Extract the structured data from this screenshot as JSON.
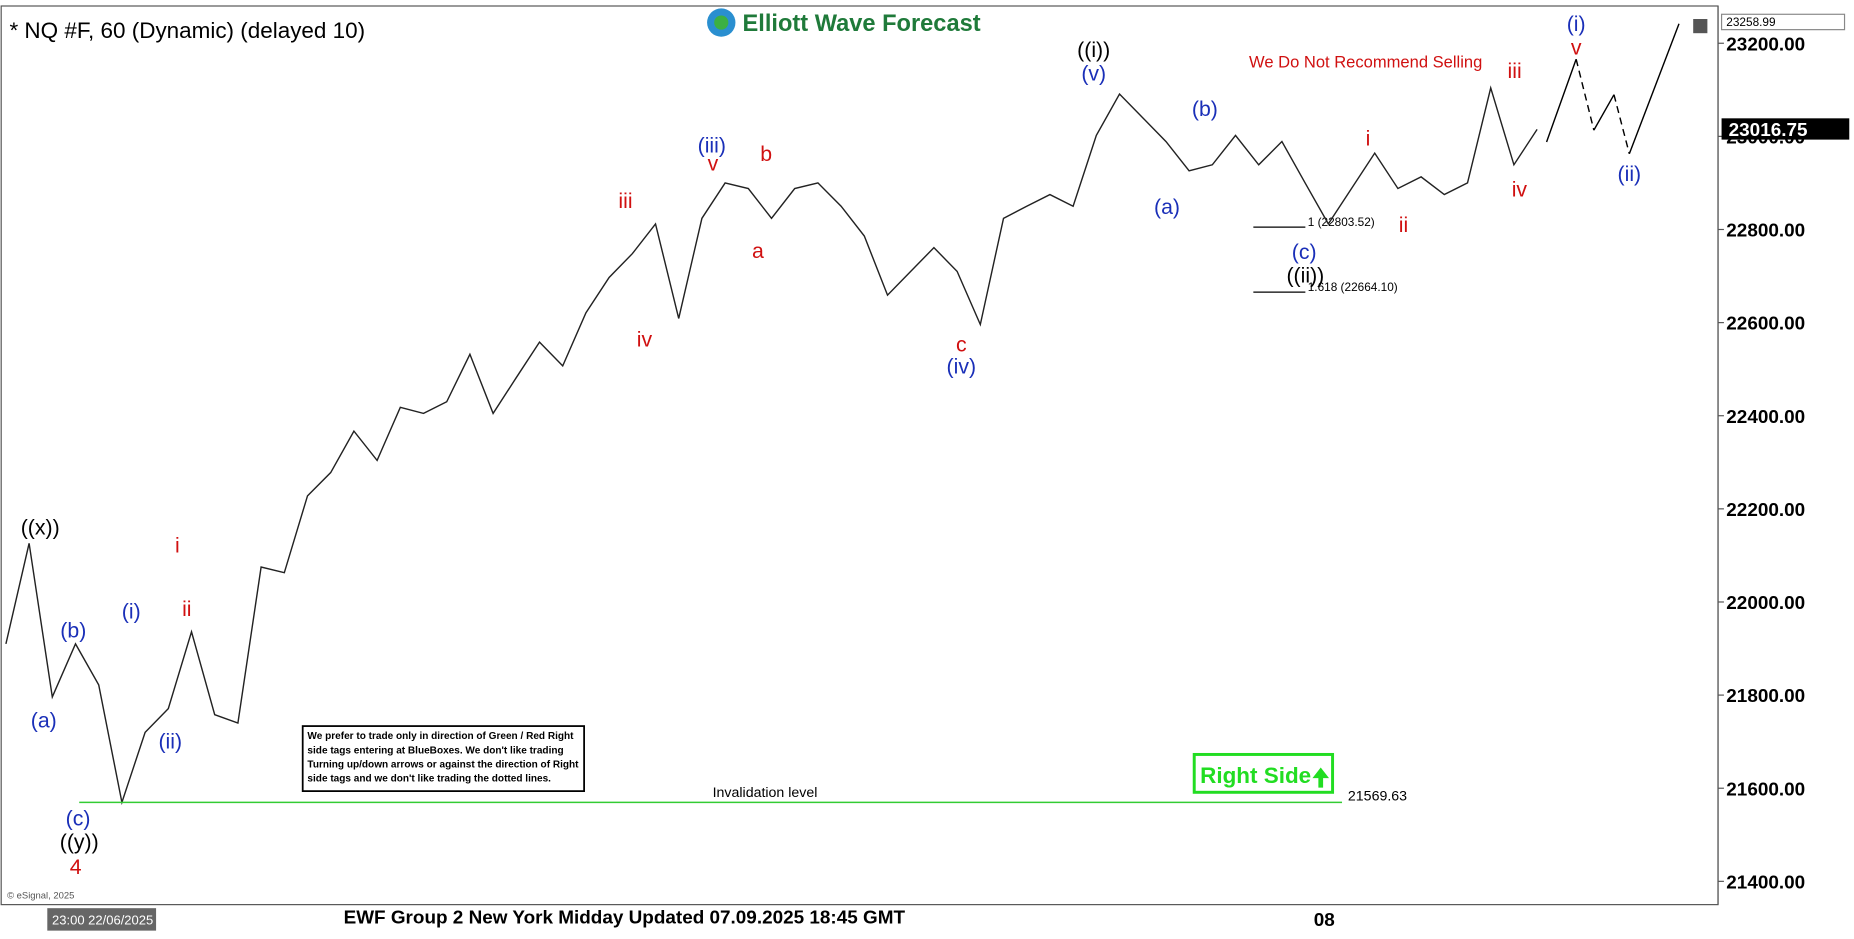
{
  "chart_data": {
    "type": "line",
    "title": "* NQ #F, 60 (Dynamic) (delayed 10)",
    "logo": "Elliott Wave Forecast",
    "warning": "We Do Not Recommend Selling",
    "series": [
      {
        "name": "NQ #F",
        "color": "#222222",
        "values": [
          21910,
          22126,
          21796,
          21910,
          21822,
          21569.63,
          21720,
          21771,
          21936,
          21758,
          21740,
          22075,
          22063,
          22228,
          22278,
          22367,
          22304,
          22418,
          22405,
          22430,
          22532,
          22405,
          22482,
          22558,
          22507,
          22621,
          22697,
          22748,
          22812,
          22609,
          22824,
          22900,
          22888,
          22824,
          22888,
          22900,
          22850,
          22786,
          22659,
          22710,
          22761,
          22710,
          22596,
          22824,
          22850,
          22875,
          22850,
          23002,
          23091,
          23040,
          22989,
          22926,
          22939,
          23002,
          22939,
          22989,
          22900,
          22812,
          22888,
          22964,
          22888,
          22913,
          22875,
          22900,
          23104,
          22939,
          23015
        ]
      }
    ],
    "ylim": [
      21350,
      23280
    ],
    "yticks": [
      {
        "value": 21400,
        "label": "21400.00"
      },
      {
        "value": 21600,
        "label": "21600.00"
      },
      {
        "value": 21800,
        "label": "21800.00"
      },
      {
        "value": 22000,
        "label": "22000.00"
      },
      {
        "value": 22200,
        "label": "22200.00"
      },
      {
        "value": 22400,
        "label": "22400.00"
      },
      {
        "value": 22600,
        "label": "22600.00"
      },
      {
        "value": 22800,
        "label": "22800.00"
      },
      {
        "value": 23000,
        "label": "23000.00"
      },
      {
        "value": 23200,
        "label": "23200.00"
      }
    ],
    "current_price": "23016.75",
    "top_price": "23258.99",
    "invalidation": {
      "label": "Invalidation level",
      "value": 21569.63
    },
    "fib_levels": [
      "1 (22803.52)",
      "1.618 (22664.10)"
    ],
    "annotations": [
      {
        "text": "((x))",
        "color": "#000000"
      },
      {
        "text": "((y))",
        "color": "#000000"
      },
      {
        "text": "((i))",
        "color": "#000000"
      },
      {
        "text": "((ii))",
        "color": "#000000"
      },
      {
        "text": "(a)",
        "color": "#1a2fb8"
      },
      {
        "text": "(b)",
        "color": "#1a2fb8"
      },
      {
        "text": "(c)",
        "color": "#1a2fb8"
      },
      {
        "text": "(i)",
        "color": "#1a2fb8"
      },
      {
        "text": "(ii)",
        "color": "#1a2fb8"
      },
      {
        "text": "(iii)",
        "color": "#1a2fb8"
      },
      {
        "text": "(iv)",
        "color": "#1a2fb8"
      },
      {
        "text": "(v)",
        "color": "#1a2fb8"
      },
      {
        "text": "(b)",
        "color": "#1a2fb8"
      },
      {
        "text": "(a)",
        "color": "#1a2fb8"
      },
      {
        "text": "(c)",
        "color": "#1a2fb8"
      },
      {
        "text": "(i)",
        "color": "#1a2fb8"
      },
      {
        "text": "(ii)",
        "color": "#1a2fb8"
      },
      {
        "text": "4",
        "color": "#d01010"
      },
      {
        "text": "i",
        "color": "#d01010"
      },
      {
        "text": "ii",
        "color": "#d01010"
      },
      {
        "text": "iii",
        "color": "#d01010"
      },
      {
        "text": "iv",
        "color": "#d01010"
      },
      {
        "text": "v",
        "color": "#d01010"
      },
      {
        "text": "b",
        "color": "#d01010"
      },
      {
        "text": "a",
        "color": "#d01010"
      },
      {
        "text": "c",
        "color": "#d01010"
      },
      {
        "text": "i",
        "color": "#d01010"
      },
      {
        "text": "ii",
        "color": "#d01010"
      },
      {
        "text": "iii",
        "color": "#d01010"
      },
      {
        "text": "iv",
        "color": "#d01010"
      },
      {
        "text": "v",
        "color": "#d01010"
      }
    ],
    "note": [
      "We prefer to trade only in direction of Green / Red Right",
      "side tags entering at BlueBoxes. We don't like trading",
      "Turning up/down arrows or against the direction of Right",
      "side tags and we don't like trading the dotted lines."
    ],
    "right_side": "Right Side",
    "footer": "EWF Group 2 New York Midday Updated 07.09.2025 18:45 GMT",
    "x_label": "08",
    "cursor_time": "23:00 22/06/2025",
    "copyright": "© eSignal, 2025"
  }
}
